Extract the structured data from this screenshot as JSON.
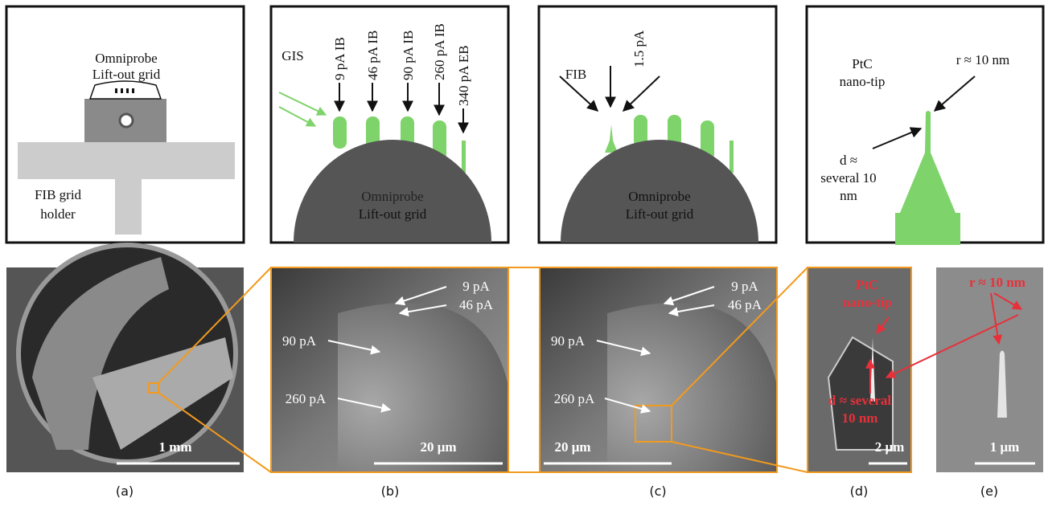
{
  "panels": [
    {
      "caption": "(a)",
      "schematic_labels": [
        "Omniprobe",
        "Lift-out grid",
        "FIB grid",
        "holder"
      ],
      "image_labels": [],
      "scale_bar": "1 mm"
    },
    {
      "caption": "(b)",
      "schematic_labels": [
        "GIS",
        "9 pA IB",
        "46 pA IB",
        "90 pA IB",
        "260 pA IB",
        "340 pA EB",
        "Omniprobe",
        "Lift-out grid"
      ],
      "image_labels": [
        "9 pA",
        "46 pA",
        "90 pA",
        "260 pA"
      ],
      "scale_bar": "20 μm"
    },
    {
      "caption": "(c)",
      "schematic_labels": [
        "FIB",
        "1.5 pA",
        "Omniprobe",
        "Lift-out grid"
      ],
      "image_labels": [
        "9 pA",
        "46 pA",
        "90 pA",
        "260 pA"
      ],
      "scale_bar": "20 μm"
    },
    {
      "caption": "(d)",
      "schematic_labels": [
        "PtC",
        "nano-tip",
        "r ≈ 10 nm",
        "d ≈",
        "several 10",
        "nm"
      ],
      "image_labels": [
        "PtC",
        "nano-tip",
        "d ≈ several",
        "10 nm"
      ],
      "scale_bar": "2 μm"
    },
    {
      "caption": "(e)",
      "schematic_labels": [],
      "image_labels": [
        "r ≈ 10 nm"
      ],
      "scale_bar": "1 μm"
    }
  ]
}
